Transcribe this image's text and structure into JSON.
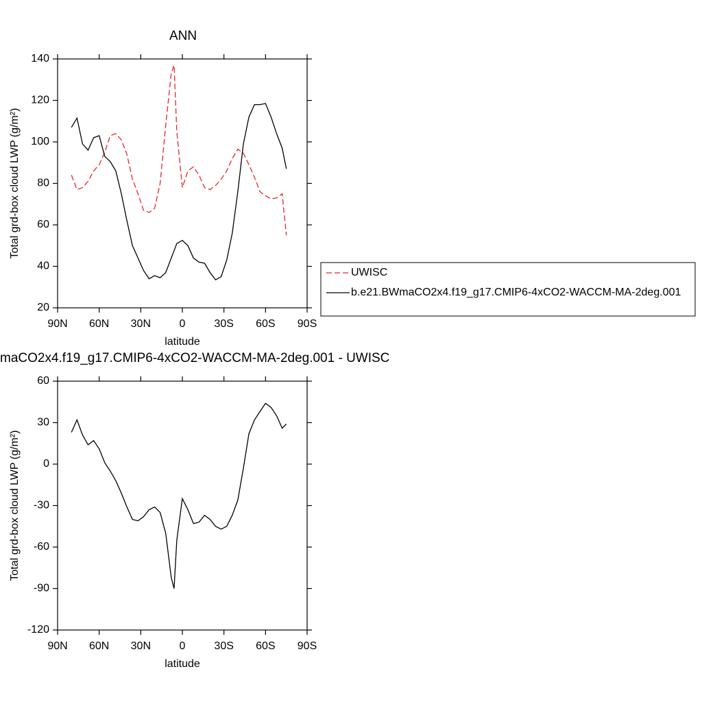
{
  "chart_data": [
    {
      "type": "line",
      "title": "ANN",
      "xlabel": "latitude",
      "ylabel": "Total grd-box cloud LWP (g/m²)",
      "x": [
        80,
        76,
        72,
        68,
        64,
        60,
        56,
        52,
        48,
        44,
        40,
        36,
        32,
        28,
        24,
        20,
        16,
        12,
        8,
        6,
        4,
        0,
        -4,
        -8,
        -12,
        -16,
        -20,
        -24,
        -28,
        -32,
        -36,
        -40,
        -44,
        -48,
        -52,
        -56,
        -60,
        -64,
        -68,
        -72,
        -75
      ],
      "xlim": [
        90,
        -90
      ],
      "xticks": [
        {
          "value": 90,
          "label": "90N"
        },
        {
          "value": 60,
          "label": "60N"
        },
        {
          "value": 30,
          "label": "30N"
        },
        0,
        {
          "value": -30,
          "label": "30S"
        },
        {
          "value": -60,
          "label": "60S"
        },
        {
          "value": -90,
          "label": "90S"
        }
      ],
      "ylim": [
        20,
        140
      ],
      "yticks": [
        20,
        40,
        60,
        80,
        100,
        120,
        140
      ],
      "legend": "right",
      "series": [
        {
          "name": "UWISC",
          "color": "#e8232a",
          "line_style": "dashed",
          "values": [
            84,
            77,
            78,
            81,
            86,
            89,
            95,
            103,
            104,
            101,
            94,
            82,
            75,
            67,
            66,
            68,
            80,
            108,
            133,
            137,
            105,
            78,
            86,
            88,
            84,
            78,
            77,
            79,
            82,
            86,
            92,
            96.5,
            94.5,
            89,
            83,
            76,
            74,
            72.5,
            73,
            75,
            55
          ]
        },
        {
          "name": "b.e21.BWmaCO2x4.f19_g17.CMIP6-4xCO2-WACCM-MA-2deg.001",
          "color": "#000000",
          "line_style": "solid",
          "values": [
            107,
            111.5,
            99,
            96,
            102,
            103,
            93,
            90.5,
            86,
            75,
            62,
            50,
            44,
            38,
            34,
            35.5,
            34.5,
            37,
            44,
            47.5,
            51,
            52.5,
            50,
            44,
            42,
            41.5,
            37,
            33.5,
            35,
            43,
            56,
            76,
            99,
            112,
            118,
            118,
            118.5,
            112,
            104,
            97,
            87
          ]
        }
      ]
    },
    {
      "type": "line",
      "title": "maCO2x4.f19_g17.CMIP6-4xCO2-WACCM-MA-2deg.001 - UWISC",
      "xlabel": "latitude",
      "ylabel": "Total grd-box cloud LWP (g/m²)",
      "x": [
        80,
        76,
        72,
        68,
        64,
        60,
        56,
        52,
        48,
        44,
        40,
        36,
        32,
        28,
        24,
        20,
        16,
        12,
        8,
        6,
        4,
        0,
        -4,
        -8,
        -12,
        -16,
        -20,
        -24,
        -28,
        -32,
        -36,
        -40,
        -44,
        -48,
        -52,
        -56,
        -60,
        -64,
        -68,
        -72,
        -75
      ],
      "xlim": [
        90,
        -90
      ],
      "xticks": [
        {
          "value": 90,
          "label": "90N"
        },
        {
          "value": 60,
          "label": "60N"
        },
        {
          "value": 30,
          "label": "30N"
        },
        0,
        {
          "value": -30,
          "label": "30S"
        },
        {
          "value": -60,
          "label": "60S"
        },
        {
          "value": -90,
          "label": "90S"
        }
      ],
      "ylim": [
        -120,
        60
      ],
      "yticks": [
        -120,
        -90,
        -60,
        -30,
        0,
        30,
        60
      ],
      "color": "#000000",
      "values": [
        23,
        32,
        21,
        14,
        17,
        11,
        1,
        -5,
        -12,
        -21,
        -31,
        -40,
        -41,
        -38,
        -33,
        -31,
        -35,
        -50,
        -82,
        -90,
        -55,
        -25,
        -33,
        -43,
        -42,
        -37,
        -40,
        -45,
        -47,
        -45,
        -37,
        -26,
        -3,
        22,
        32,
        38,
        44,
        41,
        35,
        26,
        29
      ]
    }
  ]
}
